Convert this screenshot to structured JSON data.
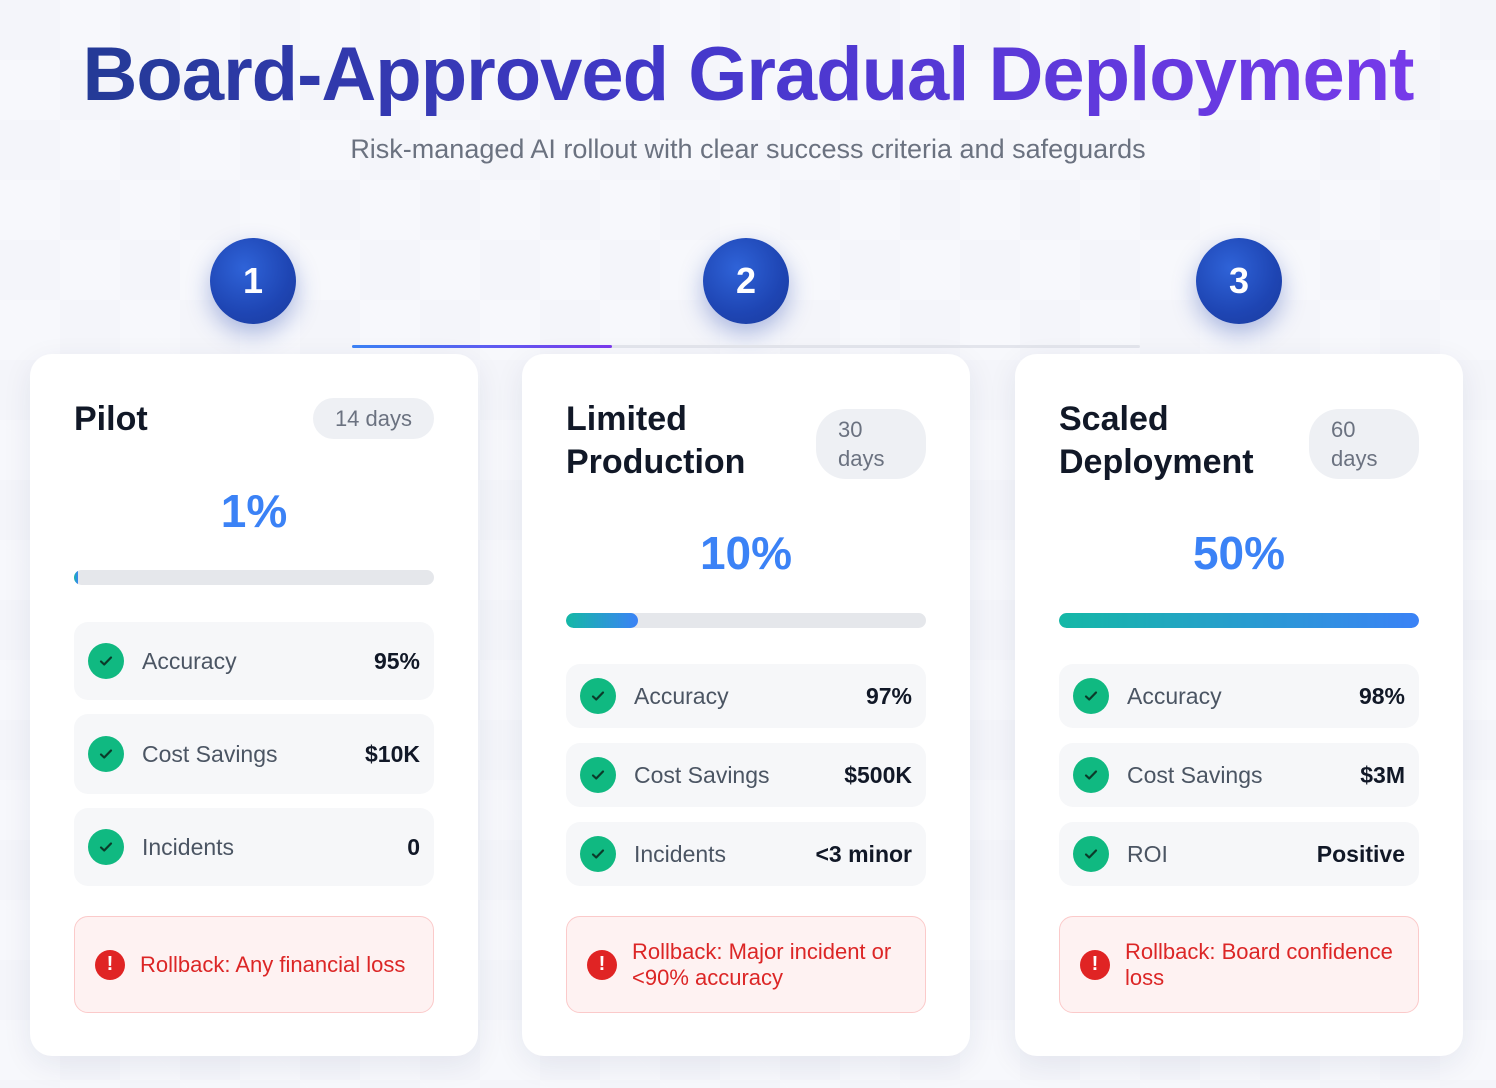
{
  "header": {
    "title": "Board-Approved Gradual Deployment",
    "subtitle": "Risk-managed AI rollout with clear success criteria and safeguards"
  },
  "steps": [
    "1",
    "2",
    "3"
  ],
  "stages": [
    {
      "title": "Pilot",
      "duration": "14 days",
      "percent": "1%",
      "progress": 0.01,
      "metrics": [
        {
          "label": "Accuracy",
          "value": "95%"
        },
        {
          "label": "Cost Savings",
          "value": "$10K"
        },
        {
          "label": "Incidents",
          "value": "0"
        }
      ],
      "rollback": "Rollback: Any financial loss"
    },
    {
      "title": "Limited Production",
      "duration": "30 days",
      "percent": "10%",
      "progress": 0.2,
      "metrics": [
        {
          "label": "Accuracy",
          "value": "97%"
        },
        {
          "label": "Cost Savings",
          "value": "$500K"
        },
        {
          "label": "Incidents",
          "value": "<3 minor"
        }
      ],
      "rollback": "Rollback: Major incident or <90% accuracy"
    },
    {
      "title": "Scaled Deployment",
      "duration": "60 days",
      "percent": "50%",
      "progress": 1.0,
      "metrics": [
        {
          "label": "Accuracy",
          "value": "98%"
        },
        {
          "label": "Cost Savings",
          "value": "$3M"
        },
        {
          "label": "ROI",
          "value": "Positive"
        }
      ],
      "rollback": "Rollback: Board confidence loss"
    }
  ],
  "colors": {
    "accent": "#3b82f6",
    "success": "#10b981",
    "danger": "#dc2626",
    "step": "#1e45b3"
  },
  "icons": {
    "check": "check-circle-icon",
    "alert": "alert-circle-icon"
  }
}
